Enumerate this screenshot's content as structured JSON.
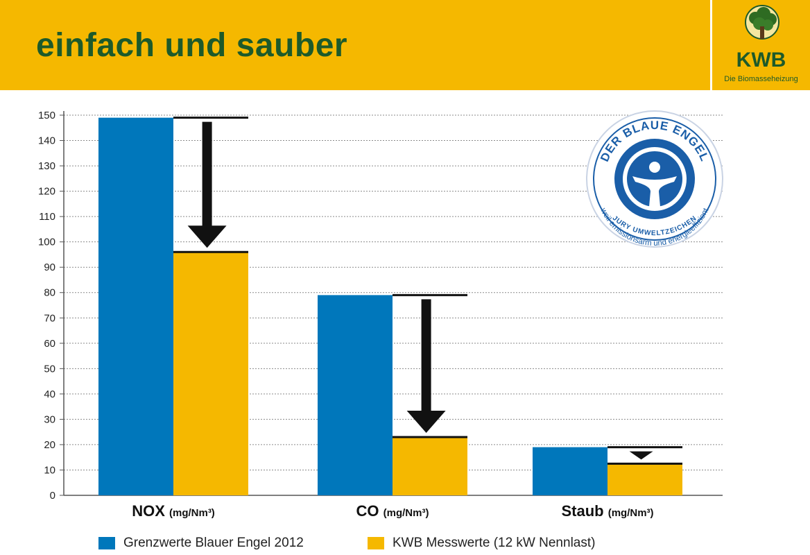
{
  "header": {
    "title": "einfach und sauber",
    "logo_name": "KWB",
    "logo_subtitle": "Die Biomasseheizung"
  },
  "seal": {
    "top_text": "DER BLAUE ENGEL",
    "ring_text": "weil emissionsarm und energieeffizient",
    "bottom_text": "JURY UMWELTZEICHEN"
  },
  "colors": {
    "header_bg": "#f5b800",
    "title": "#1d5a2a",
    "series_blue": "#0077bb",
    "series_yellow": "#f5b800",
    "seal_blue": "#1a5ea8"
  },
  "chart_data": {
    "type": "bar",
    "categories": [
      {
        "label": "NOX",
        "unit": "(mg/Nm³)"
      },
      {
        "label": "CO",
        "unit": "(mg/Nm³)"
      },
      {
        "label": "Staub",
        "unit": "(mg/Nm³)"
      }
    ],
    "series": [
      {
        "name": "Grenzwerte Blauer Engel 2012",
        "values": [
          149,
          79,
          19
        ]
      },
      {
        "name": "KWB Messwerte (12 kW Nennlast)",
        "values": [
          96,
          23,
          12.5
        ]
      }
    ],
    "yticks": [
      0,
      10,
      20,
      30,
      40,
      50,
      60,
      70,
      80,
      90,
      100,
      110,
      120,
      130,
      140,
      150
    ],
    "ylim": [
      0,
      150
    ],
    "grid": true,
    "legend_position": "bottom",
    "annotations": "downward arrows from limit value to measured value"
  }
}
